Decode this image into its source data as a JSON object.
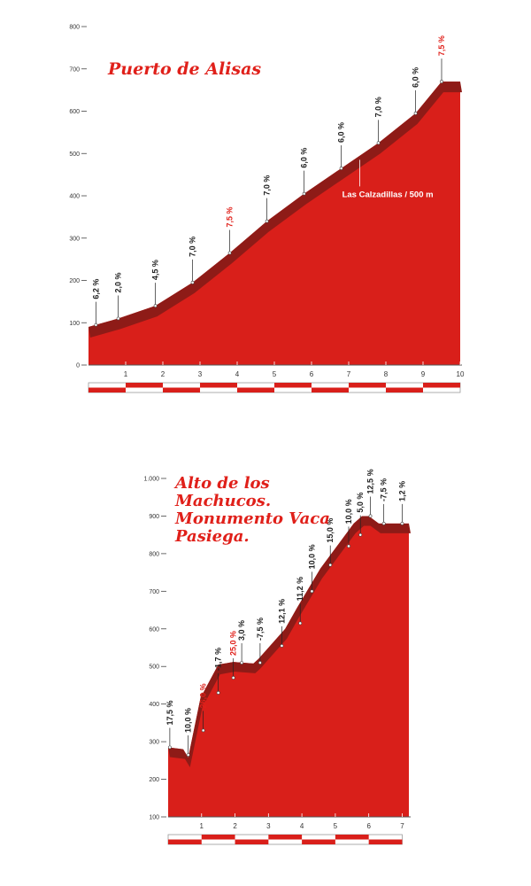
{
  "chart_data": [
    {
      "type": "area",
      "title": "Puerto de Alisas",
      "xlabel": "",
      "ylabel": "",
      "xlim": [
        0,
        10
      ],
      "ylim": [
        0,
        800
      ],
      "y_ticks": [
        0,
        100,
        200,
        300,
        400,
        500,
        600,
        700,
        800
      ],
      "y_tick_labels": [
        "0",
        "100",
        "200",
        "300",
        "400",
        "500",
        "600",
        "700",
        "800"
      ],
      "x_ticks": [
        1,
        2,
        3,
        4,
        5,
        6,
        7,
        8,
        9,
        10
      ],
      "x_tick_labels": [
        "1",
        "2",
        "3",
        "4",
        "5",
        "6",
        "7",
        "8",
        "9",
        "10"
      ],
      "grid": false,
      "fill_color": "#d91f1a",
      "band_color": "#8e1b17",
      "series": [
        {
          "x": [
            0,
            0.2,
            0.8,
            1.8,
            2.8,
            3.8,
            4.8,
            5.8,
            6.8,
            7.8,
            8.8,
            9.5,
            10
          ],
          "values": [
            90,
            95,
            110,
            140,
            195,
            265,
            340,
            405,
            465,
            525,
            595,
            670,
            670
          ]
        }
      ],
      "gradients": [
        {
          "x": 0.2,
          "y": 95,
          "label": "6,2 %",
          "hot": false
        },
        {
          "x": 0.8,
          "y": 110,
          "label": "2,0 %",
          "hot": false
        },
        {
          "x": 1.8,
          "y": 140,
          "label": "4,5 %",
          "hot": false
        },
        {
          "x": 2.8,
          "y": 195,
          "label": "7,0 %",
          "hot": false
        },
        {
          "x": 3.8,
          "y": 265,
          "label": "7,5 %",
          "hot": true
        },
        {
          "x": 4.8,
          "y": 340,
          "label": "7,0 %",
          "hot": false
        },
        {
          "x": 5.8,
          "y": 405,
          "label": "6,0 %",
          "hot": false
        },
        {
          "x": 6.8,
          "y": 465,
          "label": "6,0 %",
          "hot": false
        },
        {
          "x": 7.8,
          "y": 525,
          "label": "7,0 %",
          "hot": false
        },
        {
          "x": 8.8,
          "y": 595,
          "label": "6,0 %",
          "hot": false
        },
        {
          "x": 9.5,
          "y": 670,
          "label": "7,5 %",
          "hot": true
        }
      ],
      "annotations": [
        {
          "x": 7.3,
          "y": 485,
          "text": "Las Calzadillas / 500 m"
        }
      ]
    },
    {
      "type": "area",
      "title": "Alto de los Machucos. Monumento Vaca Pasiega.",
      "xlabel": "",
      "ylabel": "",
      "xlim": [
        0,
        7.2
      ],
      "ylim": [
        100,
        1000
      ],
      "y_ticks": [
        100,
        200,
        300,
        400,
        500,
        600,
        700,
        800,
        900,
        1000
      ],
      "y_tick_labels": [
        "100",
        "200",
        "300",
        "400",
        "500",
        "600",
        "700",
        "800",
        "900",
        "1.000"
      ],
      "x_ticks": [
        1,
        2,
        3,
        4,
        5,
        6,
        7
      ],
      "x_tick_labels": [
        "1",
        "2",
        "3",
        "4",
        "5",
        "6",
        "7"
      ],
      "grid": false,
      "fill_color": "#d91f1a",
      "band_color": "#8e1b17",
      "series": [
        {
          "x": [
            0,
            0.45,
            0.6,
            1.0,
            1.05,
            1.5,
            1.95,
            2.55,
            2.7,
            3.5,
            3.85,
            4.55,
            5.05,
            5.55,
            5.8,
            6.0,
            6.3,
            6.6,
            7.2
          ],
          "values": [
            285,
            280,
            258,
            430,
            430,
            505,
            512,
            508,
            520,
            600,
            655,
            760,
            820,
            880,
            900,
            900,
            880,
            880,
            880
          ]
        }
      ],
      "gradients": [
        {
          "x": 0.05,
          "y": 285,
          "label": "17,5 %",
          "hot": false
        },
        {
          "x": 0.6,
          "y": 265,
          "label": "10,0 %",
          "hot": false
        },
        {
          "x": 1.05,
          "y": 330,
          "label": "26,0 %",
          "hot": true
        },
        {
          "x": 1.5,
          "y": 430,
          "label": "-1,7 %",
          "hot": false
        },
        {
          "x": 1.95,
          "y": 470,
          "label": "25,0 %",
          "hot": true
        },
        {
          "x": 2.2,
          "y": 510,
          "label": "3,0 %",
          "hot": false
        },
        {
          "x": 2.75,
          "y": 510,
          "label": "-7,5 %",
          "hot": false
        },
        {
          "x": 3.4,
          "y": 555,
          "label": "12,1 %",
          "hot": false
        },
        {
          "x": 3.95,
          "y": 615,
          "label": "11,2 %",
          "hot": false
        },
        {
          "x": 4.3,
          "y": 700,
          "label": "10,0 %",
          "hot": false
        },
        {
          "x": 4.85,
          "y": 770,
          "label": "15,0 %",
          "hot": false
        },
        {
          "x": 5.4,
          "y": 820,
          "label": "10,0 %",
          "hot": false
        },
        {
          "x": 5.75,
          "y": 850,
          "label": "5,0 %",
          "hot": false
        },
        {
          "x": 6.05,
          "y": 900,
          "label": "12,5 %",
          "hot": false
        },
        {
          "x": 6.45,
          "y": 880,
          "label": "-7,5 %",
          "hot": false
        },
        {
          "x": 7.0,
          "y": 880,
          "label": "1,2 %",
          "hot": false
        }
      ],
      "annotations": []
    }
  ]
}
